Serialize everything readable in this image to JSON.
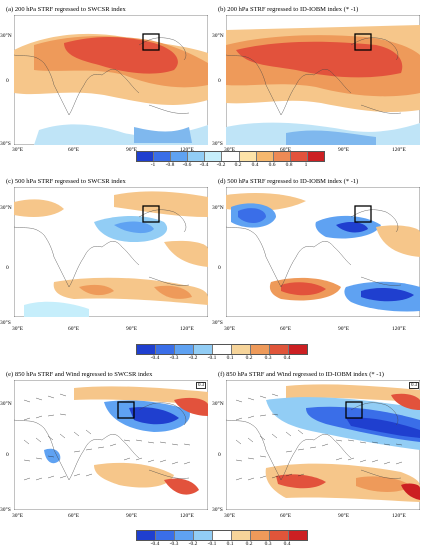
{
  "panels": [
    {
      "id": "a",
      "title": "(a)       200 hPa STRF regressed to  SWCSR index"
    },
    {
      "id": "b",
      "title": "(b)     200 hPa STRF regressed to  ID-IOBM index (* -1)"
    },
    {
      "id": "c",
      "title": "(c)       500 hPa STRF regressed to  SWCSR index"
    },
    {
      "id": "d",
      "title": "(d)     500 hPa STRF regressed to  ID-IOBM index (* -1)"
    },
    {
      "id": "e",
      "title": "(e)       850 hPa STRF and Wind regressed to  SWCSR index"
    },
    {
      "id": "f",
      "title": "(f)   850 hPa STRF and Wind regressed to  ID-IOBM index (* -1)"
    }
  ],
  "axes": {
    "lat_labels": [
      "30°N",
      "0",
      "30°S"
    ],
    "lon_labels": [
      "30°E",
      "60°E",
      "90°E",
      "120°E"
    ]
  },
  "colorbars": [
    {
      "labels": [
        "-1",
        "-0.8",
        "-0.6",
        "-0.4",
        "-0.2",
        "0.2",
        "0.4",
        "0.6",
        "0.8",
        "1"
      ]
    },
    {
      "labels": [
        "-0.4",
        "-0.3",
        "-0.2",
        "-0.1",
        "0.1",
        "0.2",
        "0.3",
        "0.4"
      ]
    },
    {
      "labels": [
        "-0.4",
        "-0.3",
        "-0.2",
        "-0.1",
        "0.1",
        "0.2",
        "0.3",
        "0.4"
      ]
    }
  ],
  "colors": {
    "cb1": [
      "#1f3fcf",
      "#3a6ee8",
      "#5fa2f2",
      "#92cdf5",
      "#c6eefb",
      "#ffffff",
      "#fde3a8",
      "#f6b86e",
      "#ee8a55",
      "#e2523c",
      "#cc1f22"
    ],
    "cb2": [
      "#1f3fcf",
      "#3a6ee8",
      "#5fa2f2",
      "#92cdf5",
      "#ffffff",
      "#f6d49a",
      "#ee9a5a",
      "#e0553a",
      "#cc1f22"
    ]
  },
  "ref_vector": "0.3"
}
